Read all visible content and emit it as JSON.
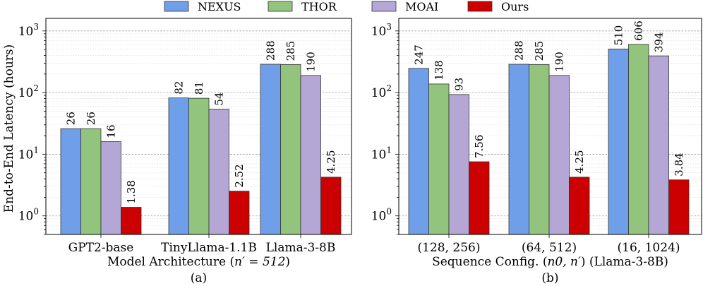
{
  "colors": {
    "NEXUS": "#6f9fe8",
    "THOR": "#92c47d",
    "MOAI": "#b4a7d6",
    "Ours": "#cc0000"
  },
  "legend": [
    "NEXUS",
    "THOR",
    "MOAI",
    "Ours"
  ],
  "ylabel": "End-to-End Latency (hours)",
  "yticks": [
    {
      "value": 1,
      "base": "10",
      "exp": "0"
    },
    {
      "value": 10,
      "base": "10",
      "exp": "1"
    },
    {
      "value": 100,
      "base": "10",
      "exp": "2"
    },
    {
      "value": 1000,
      "base": "10",
      "exp": "3"
    }
  ],
  "chart_data": [
    {
      "type": "bar",
      "scale": "log",
      "ylim": [
        0.5,
        1600
      ],
      "grid": true,
      "categories": [
        "GPT2-base",
        "TinyLlama-1.1B",
        "Llama-3-8B"
      ],
      "series": [
        {
          "name": "NEXUS",
          "values": [
            26,
            82,
            288
          ],
          "labels": [
            "26",
            "82",
            "288"
          ]
        },
        {
          "name": "THOR",
          "values": [
            26,
            81,
            285
          ],
          "labels": [
            "26",
            "81",
            "285"
          ]
        },
        {
          "name": "MOAI",
          "values": [
            16,
            54,
            190
          ],
          "labels": [
            "16",
            "54",
            "190"
          ]
        },
        {
          "name": "Ours",
          "values": [
            1.38,
            2.52,
            4.25
          ],
          "labels": [
            "1.38",
            "2.52",
            "4.25"
          ]
        }
      ],
      "xlabel": "Model Architecture (n′ = 512)",
      "xlabel_pre": "Model Architecture (",
      "xlabel_math": "n′ = 512",
      "xlabel_post": ")",
      "caption": "(a)"
    },
    {
      "type": "bar",
      "scale": "log",
      "ylim": [
        0.5,
        1600
      ],
      "grid": true,
      "categories": [
        "(128, 256)",
        "(64, 512)",
        "(16, 1024)"
      ],
      "series": [
        {
          "name": "NEXUS",
          "values": [
            247,
            288,
            510
          ],
          "labels": [
            "247",
            "288",
            "510"
          ]
        },
        {
          "name": "THOR",
          "values": [
            138,
            285,
            606
          ],
          "labels": [
            "138",
            "285",
            "606"
          ]
        },
        {
          "name": "MOAI",
          "values": [
            93,
            190,
            394
          ],
          "labels": [
            "93",
            "190",
            "394"
          ]
        },
        {
          "name": "Ours",
          "values": [
            7.56,
            4.25,
            3.84
          ],
          "labels": [
            "7.56",
            "4.25",
            "3.84"
          ]
        }
      ],
      "xlabel": "Sequence Config. (n0, n′) (Llama-3-8B)",
      "xlabel_pre": "Sequence Config. (",
      "xlabel_math": "n0, n′",
      "xlabel_post": ") (Llama-3-8B)",
      "caption": "(b)"
    }
  ]
}
